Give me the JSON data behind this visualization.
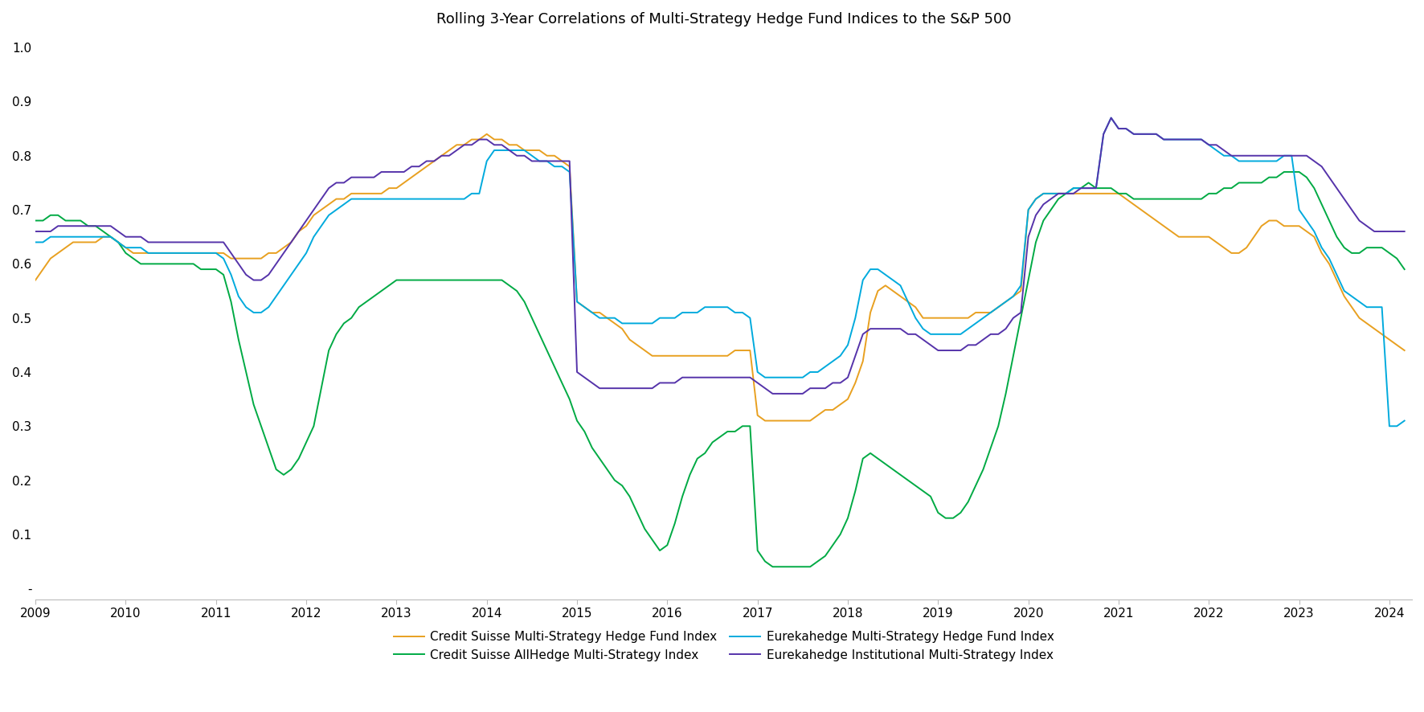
{
  "title": "Rolling 3-Year Correlations of Multi-Strategy Hedge Fund Indices to the S&P 500",
  "title_fontsize": 13,
  "background_color": "#ffffff",
  "ylim": [
    -0.02,
    1.02
  ],
  "yticks": [
    0.0,
    0.1,
    0.2,
    0.3,
    0.4,
    0.5,
    0.6,
    0.7,
    0.8,
    0.9,
    1.0
  ],
  "ytick_labels": [
    "-",
    "0.1",
    "0.2",
    "0.3",
    "0.4",
    "0.5",
    "0.6",
    "0.7",
    "0.8",
    "0.9",
    "1.0"
  ],
  "xticks": [
    2009,
    2010,
    2011,
    2012,
    2013,
    2014,
    2015,
    2016,
    2017,
    2018,
    2019,
    2020,
    2021,
    2022,
    2023,
    2024
  ],
  "series": {
    "cs_multi": {
      "label": "Credit Suisse Multi-Strategy Hedge Fund Index",
      "color": "#e8a020",
      "linewidth": 1.4
    },
    "cs_allhedge": {
      "label": "Credit Suisse AllHedge Multi-Strategy Index",
      "color": "#00aa44",
      "linewidth": 1.4
    },
    "eka_multi": {
      "label": "Eurekahedge Multi-Strategy Hedge Fund Index",
      "color": "#00aadd",
      "linewidth": 1.4
    },
    "eka_inst": {
      "label": "Eurekahedge Institutional Multi-Strategy Index",
      "color": "#5533aa",
      "linewidth": 1.4
    }
  },
  "x": [
    2009.0,
    2009.083,
    2009.167,
    2009.25,
    2009.333,
    2009.417,
    2009.5,
    2009.583,
    2009.667,
    2009.75,
    2009.833,
    2009.917,
    2010.0,
    2010.083,
    2010.167,
    2010.25,
    2010.333,
    2010.417,
    2010.5,
    2010.583,
    2010.667,
    2010.75,
    2010.833,
    2010.917,
    2011.0,
    2011.083,
    2011.167,
    2011.25,
    2011.333,
    2011.417,
    2011.5,
    2011.583,
    2011.667,
    2011.75,
    2011.833,
    2011.917,
    2012.0,
    2012.083,
    2012.167,
    2012.25,
    2012.333,
    2012.417,
    2012.5,
    2012.583,
    2012.667,
    2012.75,
    2012.833,
    2012.917,
    2013.0,
    2013.083,
    2013.167,
    2013.25,
    2013.333,
    2013.417,
    2013.5,
    2013.583,
    2013.667,
    2013.75,
    2013.833,
    2013.917,
    2014.0,
    2014.083,
    2014.167,
    2014.25,
    2014.333,
    2014.417,
    2014.5,
    2014.583,
    2014.667,
    2014.75,
    2014.833,
    2014.917,
    2015.0,
    2015.083,
    2015.167,
    2015.25,
    2015.333,
    2015.417,
    2015.5,
    2015.583,
    2015.667,
    2015.75,
    2015.833,
    2015.917,
    2016.0,
    2016.083,
    2016.167,
    2016.25,
    2016.333,
    2016.417,
    2016.5,
    2016.583,
    2016.667,
    2016.75,
    2016.833,
    2016.917,
    2017.0,
    2017.083,
    2017.167,
    2017.25,
    2017.333,
    2017.417,
    2017.5,
    2017.583,
    2017.667,
    2017.75,
    2017.833,
    2017.917,
    2018.0,
    2018.083,
    2018.167,
    2018.25,
    2018.333,
    2018.417,
    2018.5,
    2018.583,
    2018.667,
    2018.75,
    2018.833,
    2018.917,
    2019.0,
    2019.083,
    2019.167,
    2019.25,
    2019.333,
    2019.417,
    2019.5,
    2019.583,
    2019.667,
    2019.75,
    2019.833,
    2019.917,
    2020.0,
    2020.083,
    2020.167,
    2020.25,
    2020.333,
    2020.417,
    2020.5,
    2020.583,
    2020.667,
    2020.75,
    2020.833,
    2020.917,
    2021.0,
    2021.083,
    2021.167,
    2021.25,
    2021.333,
    2021.417,
    2021.5,
    2021.583,
    2021.667,
    2021.75,
    2021.833,
    2021.917,
    2022.0,
    2022.083,
    2022.167,
    2022.25,
    2022.333,
    2022.417,
    2022.5,
    2022.583,
    2022.667,
    2022.75,
    2022.833,
    2022.917,
    2023.0,
    2023.083,
    2023.167,
    2023.25,
    2023.333,
    2023.417,
    2023.5,
    2023.583,
    2023.667,
    2023.75,
    2023.833,
    2023.917,
    2024.0,
    2024.083,
    2024.167
  ],
  "y_cs_multi": [
    0.57,
    0.59,
    0.61,
    0.62,
    0.63,
    0.64,
    0.64,
    0.64,
    0.64,
    0.65,
    0.65,
    0.64,
    0.63,
    0.62,
    0.62,
    0.62,
    0.62,
    0.62,
    0.62,
    0.62,
    0.62,
    0.62,
    0.62,
    0.62,
    0.62,
    0.62,
    0.61,
    0.61,
    0.61,
    0.61,
    0.61,
    0.62,
    0.62,
    0.63,
    0.64,
    0.66,
    0.67,
    0.69,
    0.7,
    0.71,
    0.72,
    0.72,
    0.73,
    0.73,
    0.73,
    0.73,
    0.73,
    0.74,
    0.74,
    0.75,
    0.76,
    0.77,
    0.78,
    0.79,
    0.8,
    0.81,
    0.82,
    0.82,
    0.83,
    0.83,
    0.84,
    0.83,
    0.83,
    0.82,
    0.82,
    0.81,
    0.81,
    0.81,
    0.8,
    0.8,
    0.79,
    0.78,
    0.53,
    0.52,
    0.51,
    0.51,
    0.5,
    0.49,
    0.48,
    0.46,
    0.45,
    0.44,
    0.43,
    0.43,
    0.43,
    0.43,
    0.43,
    0.43,
    0.43,
    0.43,
    0.43,
    0.43,
    0.43,
    0.44,
    0.44,
    0.44,
    0.32,
    0.31,
    0.31,
    0.31,
    0.31,
    0.31,
    0.31,
    0.31,
    0.32,
    0.33,
    0.33,
    0.34,
    0.35,
    0.38,
    0.42,
    0.51,
    0.55,
    0.56,
    0.55,
    0.54,
    0.53,
    0.52,
    0.5,
    0.5,
    0.5,
    0.5,
    0.5,
    0.5,
    0.5,
    0.51,
    0.51,
    0.51,
    0.52,
    0.53,
    0.54,
    0.55,
    0.7,
    0.72,
    0.73,
    0.73,
    0.73,
    0.73,
    0.73,
    0.73,
    0.73,
    0.73,
    0.73,
    0.73,
    0.73,
    0.72,
    0.71,
    0.7,
    0.69,
    0.68,
    0.67,
    0.66,
    0.65,
    0.65,
    0.65,
    0.65,
    0.65,
    0.64,
    0.63,
    0.62,
    0.62,
    0.63,
    0.65,
    0.67,
    0.68,
    0.68,
    0.67,
    0.67,
    0.67,
    0.66,
    0.65,
    0.62,
    0.6,
    0.57,
    0.54,
    0.52,
    0.5,
    0.49,
    0.48,
    0.47,
    0.46,
    0.45,
    0.44
  ],
  "y_cs_allhedge": [
    0.68,
    0.68,
    0.69,
    0.69,
    0.68,
    0.68,
    0.68,
    0.67,
    0.67,
    0.66,
    0.65,
    0.64,
    0.62,
    0.61,
    0.6,
    0.6,
    0.6,
    0.6,
    0.6,
    0.6,
    0.6,
    0.6,
    0.59,
    0.59,
    0.59,
    0.58,
    0.53,
    0.46,
    0.4,
    0.34,
    0.3,
    0.26,
    0.22,
    0.21,
    0.22,
    0.24,
    0.27,
    0.3,
    0.37,
    0.44,
    0.47,
    0.49,
    0.5,
    0.52,
    0.53,
    0.54,
    0.55,
    0.56,
    0.57,
    0.57,
    0.57,
    0.57,
    0.57,
    0.57,
    0.57,
    0.57,
    0.57,
    0.57,
    0.57,
    0.57,
    0.57,
    0.57,
    0.57,
    0.56,
    0.55,
    0.53,
    0.5,
    0.47,
    0.44,
    0.41,
    0.38,
    0.35,
    0.31,
    0.29,
    0.26,
    0.24,
    0.22,
    0.2,
    0.19,
    0.17,
    0.14,
    0.11,
    0.09,
    0.07,
    0.08,
    0.12,
    0.17,
    0.21,
    0.24,
    0.25,
    0.27,
    0.28,
    0.29,
    0.29,
    0.3,
    0.3,
    0.07,
    0.05,
    0.04,
    0.04,
    0.04,
    0.04,
    0.04,
    0.04,
    0.05,
    0.06,
    0.08,
    0.1,
    0.13,
    0.18,
    0.24,
    0.25,
    0.24,
    0.23,
    0.22,
    0.21,
    0.2,
    0.19,
    0.18,
    0.17,
    0.14,
    0.13,
    0.13,
    0.14,
    0.16,
    0.19,
    0.22,
    0.26,
    0.3,
    0.36,
    0.43,
    0.5,
    0.57,
    0.64,
    0.68,
    0.7,
    0.72,
    0.73,
    0.74,
    0.74,
    0.75,
    0.74,
    0.74,
    0.74,
    0.73,
    0.73,
    0.72,
    0.72,
    0.72,
    0.72,
    0.72,
    0.72,
    0.72,
    0.72,
    0.72,
    0.72,
    0.73,
    0.73,
    0.74,
    0.74,
    0.75,
    0.75,
    0.75,
    0.75,
    0.76,
    0.76,
    0.77,
    0.77,
    0.77,
    0.76,
    0.74,
    0.71,
    0.68,
    0.65,
    0.63,
    0.62,
    0.62,
    0.63,
    0.63,
    0.63,
    0.62,
    0.61,
    0.59
  ],
  "y_eka_multi": [
    0.64,
    0.64,
    0.65,
    0.65,
    0.65,
    0.65,
    0.65,
    0.65,
    0.65,
    0.65,
    0.65,
    0.64,
    0.63,
    0.63,
    0.63,
    0.62,
    0.62,
    0.62,
    0.62,
    0.62,
    0.62,
    0.62,
    0.62,
    0.62,
    0.62,
    0.61,
    0.58,
    0.54,
    0.52,
    0.51,
    0.51,
    0.52,
    0.54,
    0.56,
    0.58,
    0.6,
    0.62,
    0.65,
    0.67,
    0.69,
    0.7,
    0.71,
    0.72,
    0.72,
    0.72,
    0.72,
    0.72,
    0.72,
    0.72,
    0.72,
    0.72,
    0.72,
    0.72,
    0.72,
    0.72,
    0.72,
    0.72,
    0.72,
    0.73,
    0.73,
    0.79,
    0.81,
    0.81,
    0.81,
    0.81,
    0.81,
    0.8,
    0.79,
    0.79,
    0.78,
    0.78,
    0.77,
    0.53,
    0.52,
    0.51,
    0.5,
    0.5,
    0.5,
    0.49,
    0.49,
    0.49,
    0.49,
    0.49,
    0.5,
    0.5,
    0.5,
    0.51,
    0.51,
    0.51,
    0.52,
    0.52,
    0.52,
    0.52,
    0.51,
    0.51,
    0.5,
    0.4,
    0.39,
    0.39,
    0.39,
    0.39,
    0.39,
    0.39,
    0.4,
    0.4,
    0.41,
    0.42,
    0.43,
    0.45,
    0.5,
    0.57,
    0.59,
    0.59,
    0.58,
    0.57,
    0.56,
    0.53,
    0.5,
    0.48,
    0.47,
    0.47,
    0.47,
    0.47,
    0.47,
    0.48,
    0.49,
    0.5,
    0.51,
    0.52,
    0.53,
    0.54,
    0.56,
    0.7,
    0.72,
    0.73,
    0.73,
    0.73,
    0.73,
    0.74,
    0.74,
    0.74,
    0.74,
    0.84,
    0.87,
    0.85,
    0.85,
    0.84,
    0.84,
    0.84,
    0.84,
    0.83,
    0.83,
    0.83,
    0.83,
    0.83,
    0.83,
    0.82,
    0.81,
    0.8,
    0.8,
    0.79,
    0.79,
    0.79,
    0.79,
    0.79,
    0.79,
    0.8,
    0.8,
    0.7,
    0.68,
    0.66,
    0.63,
    0.61,
    0.58,
    0.55,
    0.54,
    0.53,
    0.52,
    0.52,
    0.52,
    0.3,
    0.3,
    0.31
  ],
  "y_eka_inst": [
    0.66,
    0.66,
    0.66,
    0.67,
    0.67,
    0.67,
    0.67,
    0.67,
    0.67,
    0.67,
    0.67,
    0.66,
    0.65,
    0.65,
    0.65,
    0.64,
    0.64,
    0.64,
    0.64,
    0.64,
    0.64,
    0.64,
    0.64,
    0.64,
    0.64,
    0.64,
    0.62,
    0.6,
    0.58,
    0.57,
    0.57,
    0.58,
    0.6,
    0.62,
    0.64,
    0.66,
    0.68,
    0.7,
    0.72,
    0.74,
    0.75,
    0.75,
    0.76,
    0.76,
    0.76,
    0.76,
    0.77,
    0.77,
    0.77,
    0.77,
    0.78,
    0.78,
    0.79,
    0.79,
    0.8,
    0.8,
    0.81,
    0.82,
    0.82,
    0.83,
    0.83,
    0.82,
    0.82,
    0.81,
    0.8,
    0.8,
    0.79,
    0.79,
    0.79,
    0.79,
    0.79,
    0.79,
    0.4,
    0.39,
    0.38,
    0.37,
    0.37,
    0.37,
    0.37,
    0.37,
    0.37,
    0.37,
    0.37,
    0.38,
    0.38,
    0.38,
    0.39,
    0.39,
    0.39,
    0.39,
    0.39,
    0.39,
    0.39,
    0.39,
    0.39,
    0.39,
    0.38,
    0.37,
    0.36,
    0.36,
    0.36,
    0.36,
    0.36,
    0.37,
    0.37,
    0.37,
    0.38,
    0.38,
    0.39,
    0.43,
    0.47,
    0.48,
    0.48,
    0.48,
    0.48,
    0.48,
    0.47,
    0.47,
    0.46,
    0.45,
    0.44,
    0.44,
    0.44,
    0.44,
    0.45,
    0.45,
    0.46,
    0.47,
    0.47,
    0.48,
    0.5,
    0.51,
    0.65,
    0.69,
    0.71,
    0.72,
    0.73,
    0.73,
    0.73,
    0.74,
    0.74,
    0.74,
    0.84,
    0.87,
    0.85,
    0.85,
    0.84,
    0.84,
    0.84,
    0.84,
    0.83,
    0.83,
    0.83,
    0.83,
    0.83,
    0.83,
    0.82,
    0.82,
    0.81,
    0.8,
    0.8,
    0.8,
    0.8,
    0.8,
    0.8,
    0.8,
    0.8,
    0.8,
    0.8,
    0.8,
    0.79,
    0.78,
    0.76,
    0.74,
    0.72,
    0.7,
    0.68,
    0.67,
    0.66,
    0.66,
    0.66,
    0.66,
    0.66
  ]
}
